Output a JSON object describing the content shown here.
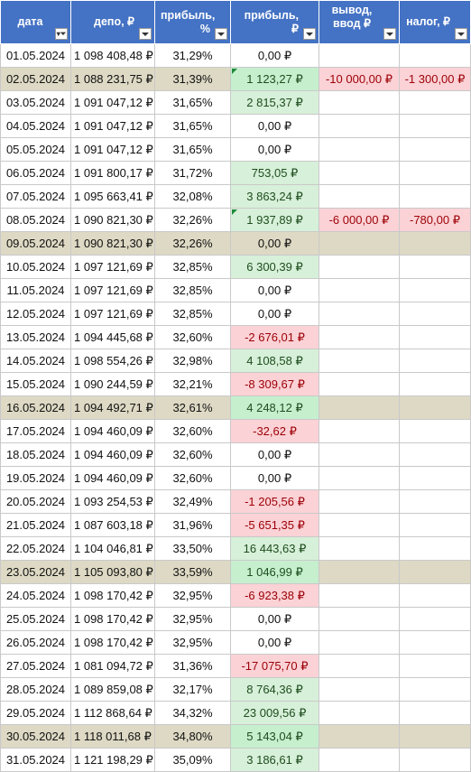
{
  "headers": {
    "date": "дата",
    "depo": "депо, ₽",
    "pct": "прибыль, %",
    "profit": "прибыль, ₽",
    "out": "вывод, ввод ₽",
    "tax": "налог, ₽"
  },
  "colors": {
    "header": "#4472c4",
    "highlight_row": "#ddd9c4",
    "positive_fill": "#d7f0d9",
    "negative_fill": "#fbd2d6",
    "negative_text": "#9c0006"
  },
  "rows": [
    {
      "date": "01.05.2024",
      "depo": "1 098 408,48 ₽",
      "pct": "31,29%",
      "profit": "0,00 ₽",
      "out": "",
      "tax": ""
    },
    {
      "date": "02.05.2024",
      "depo": "1 088 231,75 ₽",
      "pct": "31,39%",
      "profit": "1 123,27 ₽",
      "out": "-10 000,00 ₽",
      "tax": "-1 300,00 ₽"
    },
    {
      "date": "03.05.2024",
      "depo": "1 091 047,12 ₽",
      "pct": "31,65%",
      "profit": "2 815,37 ₽",
      "out": "",
      "tax": ""
    },
    {
      "date": "04.05.2024",
      "depo": "1 091 047,12 ₽",
      "pct": "31,65%",
      "profit": "0,00 ₽",
      "out": "",
      "tax": ""
    },
    {
      "date": "05.05.2024",
      "depo": "1 091 047,12 ₽",
      "pct": "31,65%",
      "profit": "0,00 ₽",
      "out": "",
      "tax": ""
    },
    {
      "date": "06.05.2024",
      "depo": "1 091 800,17 ₽",
      "pct": "31,72%",
      "profit": "753,05 ₽",
      "out": "",
      "tax": ""
    },
    {
      "date": "07.05.2024",
      "depo": "1 095 663,41 ₽",
      "pct": "32,08%",
      "profit": "3 863,24 ₽",
      "out": "",
      "tax": ""
    },
    {
      "date": "08.05.2024",
      "depo": "1 090 821,30 ₽",
      "pct": "32,26%",
      "profit": "1 937,89 ₽",
      "out": "-6 000,00 ₽",
      "tax": "-780,00 ₽"
    },
    {
      "date": "09.05.2024",
      "depo": "1 090 821,30 ₽",
      "pct": "32,26%",
      "profit": "0,00 ₽",
      "out": "",
      "tax": ""
    },
    {
      "date": "10.05.2024",
      "depo": "1 097 121,69 ₽",
      "pct": "32,85%",
      "profit": "6 300,39 ₽",
      "out": "",
      "tax": ""
    },
    {
      "date": "11.05.2024",
      "depo": "1 097 121,69 ₽",
      "pct": "32,85%",
      "profit": "0,00 ₽",
      "out": "",
      "tax": ""
    },
    {
      "date": "12.05.2024",
      "depo": "1 097 121,69 ₽",
      "pct": "32,85%",
      "profit": "0,00 ₽",
      "out": "",
      "tax": ""
    },
    {
      "date": "13.05.2024",
      "depo": "1 094 445,68 ₽",
      "pct": "32,60%",
      "profit": "-2 676,01 ₽",
      "out": "",
      "tax": ""
    },
    {
      "date": "14.05.2024",
      "depo": "1 098 554,26 ₽",
      "pct": "32,98%",
      "profit": "4 108,58 ₽",
      "out": "",
      "tax": ""
    },
    {
      "date": "15.05.2024",
      "depo": "1 090 244,59 ₽",
      "pct": "32,21%",
      "profit": "-8 309,67 ₽",
      "out": "",
      "tax": ""
    },
    {
      "date": "16.05.2024",
      "depo": "1 094 492,71 ₽",
      "pct": "32,61%",
      "profit": "4 248,12 ₽",
      "out": "",
      "tax": ""
    },
    {
      "date": "17.05.2024",
      "depo": "1 094 460,09 ₽",
      "pct": "32,60%",
      "profit": "-32,62 ₽",
      "out": "",
      "tax": ""
    },
    {
      "date": "18.05.2024",
      "depo": "1 094 460,09 ₽",
      "pct": "32,60%",
      "profit": "0,00 ₽",
      "out": "",
      "tax": ""
    },
    {
      "date": "19.05.2024",
      "depo": "1 094 460,09 ₽",
      "pct": "32,60%",
      "profit": "0,00 ₽",
      "out": "",
      "tax": ""
    },
    {
      "date": "20.05.2024",
      "depo": "1 093 254,53 ₽",
      "pct": "32,49%",
      "profit": "-1 205,56 ₽",
      "out": "",
      "tax": ""
    },
    {
      "date": "21.05.2024",
      "depo": "1 087 603,18 ₽",
      "pct": "31,96%",
      "profit": "-5 651,35 ₽",
      "out": "",
      "tax": ""
    },
    {
      "date": "22.05.2024",
      "depo": "1 104 046,81 ₽",
      "pct": "33,50%",
      "profit": "16 443,63 ₽",
      "out": "",
      "tax": ""
    },
    {
      "date": "23.05.2024",
      "depo": "1 105 093,80 ₽",
      "pct": "33,59%",
      "profit": "1 046,99 ₽",
      "out": "",
      "tax": ""
    },
    {
      "date": "24.05.2024",
      "depo": "1 098 170,42 ₽",
      "pct": "32,95%",
      "profit": "-6 923,38 ₽",
      "out": "",
      "tax": ""
    },
    {
      "date": "25.05.2024",
      "depo": "1 098 170,42 ₽",
      "pct": "32,95%",
      "profit": "0,00 ₽",
      "out": "",
      "tax": ""
    },
    {
      "date": "26.05.2024",
      "depo": "1 098 170,42 ₽",
      "pct": "32,95%",
      "profit": "0,00 ₽",
      "out": "",
      "tax": ""
    },
    {
      "date": "27.05.2024",
      "depo": "1 081 094,72 ₽",
      "pct": "31,36%",
      "profit": "-17 075,70 ₽",
      "out": "",
      "tax": ""
    },
    {
      "date": "28.05.2024",
      "depo": "1 089 859,08 ₽",
      "pct": "32,17%",
      "profit": "8 764,36 ₽",
      "out": "",
      "tax": ""
    },
    {
      "date": "29.05.2024",
      "depo": "1 112 868,64 ₽",
      "pct": "34,32%",
      "profit": "23 009,56 ₽",
      "out": "",
      "tax": ""
    },
    {
      "date": "30.05.2024",
      "depo": "1 118 011,68 ₽",
      "pct": "34,80%",
      "profit": "5 143,04 ₽",
      "out": "",
      "tax": ""
    },
    {
      "date": "31.05.2024",
      "depo": "1 121 198,29 ₽",
      "pct": "35,09%",
      "profit": "3 186,61 ₽",
      "out": "",
      "tax": ""
    }
  ],
  "highlighted_dates": [
    "02.05.2024",
    "09.05.2024",
    "16.05.2024",
    "23.05.2024",
    "30.05.2024"
  ],
  "flagged_dates": [
    "02.05.2024",
    "08.05.2024"
  ],
  "filtered_column": "date"
}
